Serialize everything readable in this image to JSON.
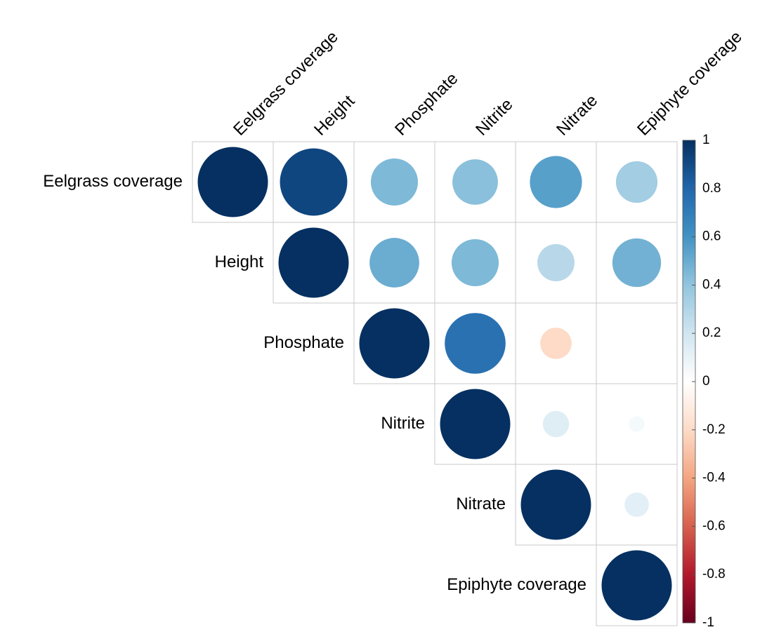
{
  "chart_data": {
    "type": "corrplot",
    "variables": [
      "Eelgrass coverage",
      "Height",
      "Phosphate",
      "Nitrite",
      "Nitrate",
      "Epiphyte coverage"
    ],
    "matrix": [
      [
        1,
        0.92,
        0.45,
        0.42,
        0.55,
        0.35
      ],
      [
        null,
        1,
        0.5,
        0.45,
        0.28,
        0.48
      ],
      [
        null,
        null,
        1,
        0.75,
        -0.2,
        0
      ],
      [
        null,
        null,
        null,
        1,
        0.14,
        0.05
      ],
      [
        null,
        null,
        null,
        null,
        1,
        0.12
      ],
      [
        null,
        null,
        null,
        null,
        null,
        1
      ]
    ],
    "colorscale": [
      "#67001F",
      "#B2182B",
      "#D6604D",
      "#F4A582",
      "#FDDBC7",
      "#FFFFFF",
      "#D1E5F0",
      "#92C5DE",
      "#4393C3",
      "#2166AC",
      "#053061"
    ],
    "clim": [
      -1,
      1
    ],
    "cticks": [
      -1,
      -0.8,
      -0.6,
      -0.4,
      -0.2,
      0,
      0.2,
      0.4,
      0.6,
      0.8,
      1
    ]
  }
}
